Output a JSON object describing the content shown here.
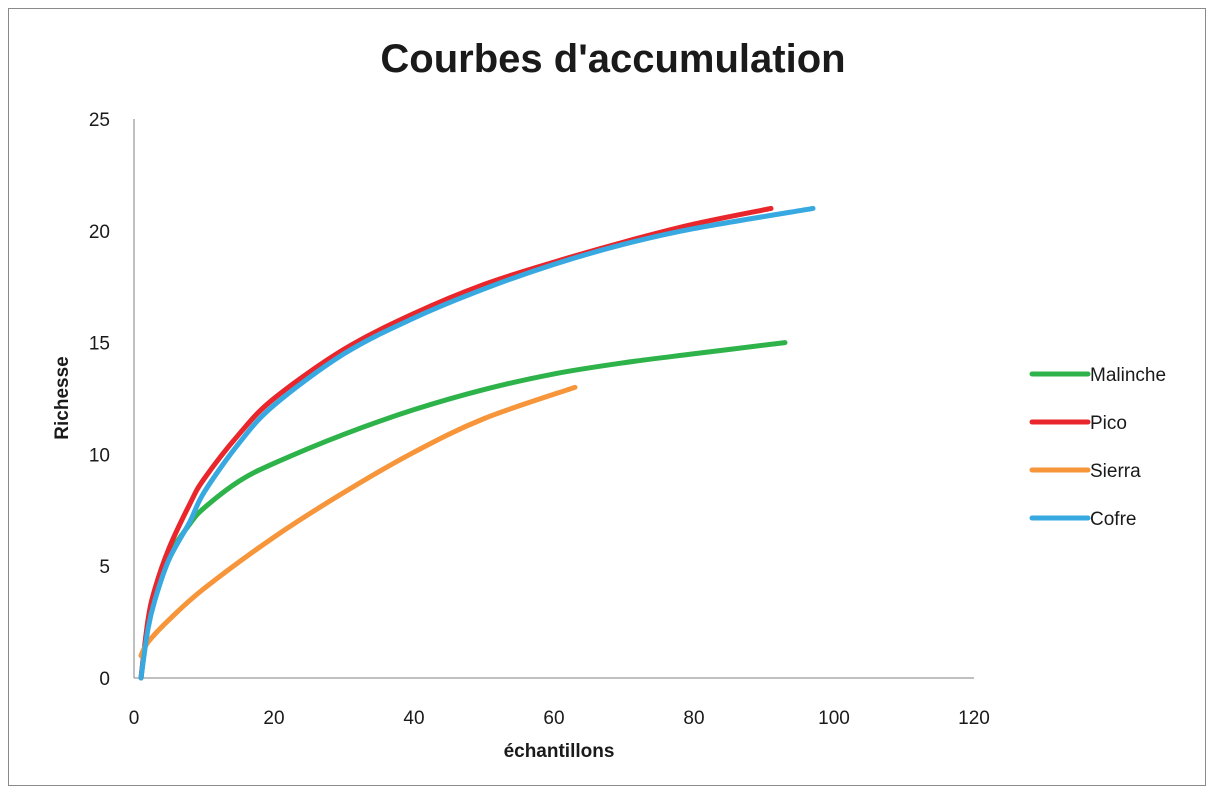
{
  "chart_data": {
    "type": "line",
    "title": "Courbes d'accumulation",
    "xlabel": "échantillons",
    "ylabel": "Richesse",
    "xlim": [
      0,
      120
    ],
    "ylim": [
      0,
      25
    ],
    "x_ticks": [
      0,
      20,
      40,
      60,
      80,
      100,
      120
    ],
    "y_ticks": [
      0,
      5,
      10,
      15,
      20,
      25
    ],
    "grid": false,
    "legend_position": "right",
    "series": [
      {
        "name": "Malinche",
        "color": "#2db34a",
        "x": [
          1,
          2,
          3,
          5,
          8,
          10,
          15,
          20,
          30,
          40,
          50,
          60,
          70,
          80,
          93
        ],
        "y": [
          0,
          2.5,
          3.8,
          5.5,
          6.9,
          7.6,
          8.8,
          9.6,
          10.9,
          12.0,
          12.9,
          13.6,
          14.1,
          14.5,
          15.0
        ]
      },
      {
        "name": "Pico",
        "color": "#e8262b",
        "x": [
          1,
          2,
          3,
          5,
          8,
          10,
          15,
          20,
          30,
          40,
          50,
          60,
          70,
          80,
          91
        ],
        "y": [
          0,
          2.6,
          4.0,
          5.8,
          7.8,
          8.9,
          10.9,
          12.5,
          14.7,
          16.3,
          17.6,
          18.6,
          19.5,
          20.3,
          21.0
        ]
      },
      {
        "name": "Sierra",
        "color": "#f7953a",
        "x": [
          1,
          2,
          5,
          10,
          20,
          30,
          40,
          50,
          63
        ],
        "y": [
          1.0,
          1.6,
          2.6,
          4.0,
          6.3,
          8.3,
          10.1,
          11.6,
          13.0
        ]
      },
      {
        "name": "Cofre",
        "color": "#37a9e0",
        "x": [
          1,
          2,
          3,
          5,
          8,
          10,
          15,
          20,
          30,
          40,
          50,
          60,
          70,
          80,
          97
        ],
        "y": [
          0,
          2.2,
          3.5,
          5.3,
          7.0,
          8.3,
          10.5,
          12.2,
          14.5,
          16.1,
          17.4,
          18.5,
          19.4,
          20.1,
          21.0
        ]
      }
    ]
  }
}
